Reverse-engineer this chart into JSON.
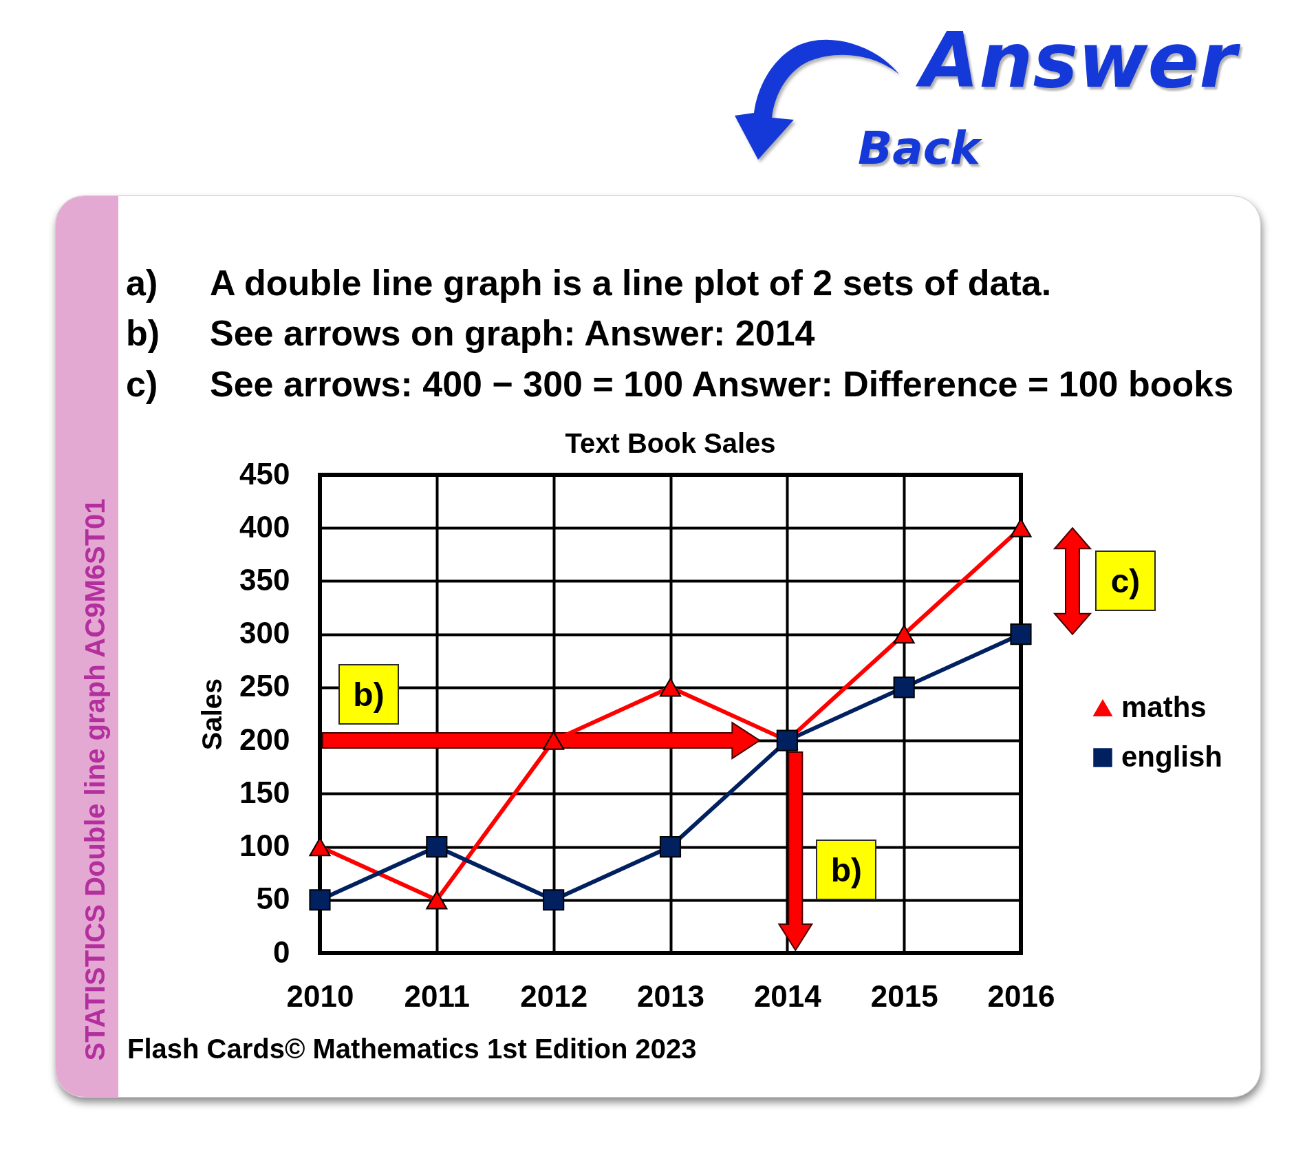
{
  "chart_data": {
    "type": "line",
    "title": "Text Book Sales",
    "ylabel": "Sales",
    "categories": [
      "2010",
      "2011",
      "2012",
      "2013",
      "2014",
      "2015",
      "2016"
    ],
    "series": [
      {
        "name": "maths",
        "color": "#ff0000",
        "marker": "triangle",
        "values": [
          100,
          50,
          200,
          250,
          200,
          300,
          400
        ]
      },
      {
        "name": "english",
        "color": "#002060",
        "marker": "square",
        "values": [
          50,
          100,
          50,
          100,
          200,
          250,
          300
        ]
      }
    ],
    "ylim": [
      0,
      450
    ],
    "yticks": [
      0,
      50,
      100,
      150,
      200,
      250,
      300,
      350,
      400,
      450
    ],
    "grid": true,
    "legend": "right",
    "line_style": "solid",
    "annotations": [
      "Answer",
      "Back",
      "a)",
      "A double line graph is a line plot of 2 sets of data.",
      "b)",
      "See arrows on graph: Answer: 2014",
      "c)",
      "See arrows: 400 − 300 = 100 Answer: Difference = 100 books",
      "c)",
      "b)",
      "b)",
      "STATISTICS Double line graph AC9M6ST01",
      "Flash Cards© Mathematics 1st Edition 2023"
    ]
  }
}
